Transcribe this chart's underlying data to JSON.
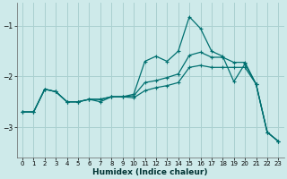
{
  "xlabel": "Humidex (Indice chaleur)",
  "bg_color": "#ceeaea",
  "grid_color": "#aad0d0",
  "line_color": "#007070",
  "xlim": [
    -0.5,
    23.5
  ],
  "ylim": [
    -3.6,
    -0.55
  ],
  "yticks": [
    -3,
    -2,
    -1
  ],
  "xticks": [
    0,
    1,
    2,
    3,
    4,
    5,
    6,
    7,
    8,
    9,
    10,
    11,
    12,
    13,
    14,
    15,
    16,
    17,
    18,
    19,
    20,
    21,
    22,
    23
  ],
  "line1_x": [
    0,
    1,
    2,
    3,
    4,
    5,
    6,
    7,
    8,
    9,
    10,
    11,
    12,
    13,
    14,
    15,
    16,
    17,
    18,
    19,
    20,
    21,
    22,
    23
  ],
  "line1_y": [
    -2.7,
    -2.7,
    -2.25,
    -2.3,
    -2.5,
    -2.5,
    -2.45,
    -2.5,
    -2.4,
    -2.4,
    -2.35,
    -1.7,
    -1.6,
    -1.7,
    -1.5,
    -0.82,
    -1.05,
    -1.5,
    -1.6,
    -2.1,
    -1.75,
    -2.15,
    -3.1,
    -3.28
  ],
  "line2_x": [
    0,
    1,
    2,
    3,
    4,
    5,
    6,
    7,
    8,
    9,
    10,
    11,
    12,
    13,
    14,
    15,
    16,
    17,
    18,
    19,
    20,
    21,
    22,
    23
  ],
  "line2_y": [
    -2.7,
    -2.7,
    -2.25,
    -2.3,
    -2.5,
    -2.5,
    -2.45,
    -2.45,
    -2.4,
    -2.4,
    -2.38,
    -2.12,
    -2.08,
    -2.02,
    -1.95,
    -1.58,
    -1.52,
    -1.62,
    -1.62,
    -1.72,
    -1.72,
    -2.15,
    -3.1,
    -3.28
  ],
  "line3_x": [
    0,
    1,
    2,
    3,
    4,
    5,
    6,
    7,
    8,
    9,
    10,
    11,
    12,
    13,
    14,
    15,
    16,
    17,
    18,
    19,
    20,
    21,
    22,
    23
  ],
  "line3_y": [
    -2.7,
    -2.7,
    -2.25,
    -2.3,
    -2.5,
    -2.5,
    -2.45,
    -2.45,
    -2.4,
    -2.4,
    -2.42,
    -2.28,
    -2.22,
    -2.18,
    -2.12,
    -1.82,
    -1.78,
    -1.82,
    -1.82,
    -1.82,
    -1.82,
    -2.15,
    -3.1,
    -3.28
  ]
}
